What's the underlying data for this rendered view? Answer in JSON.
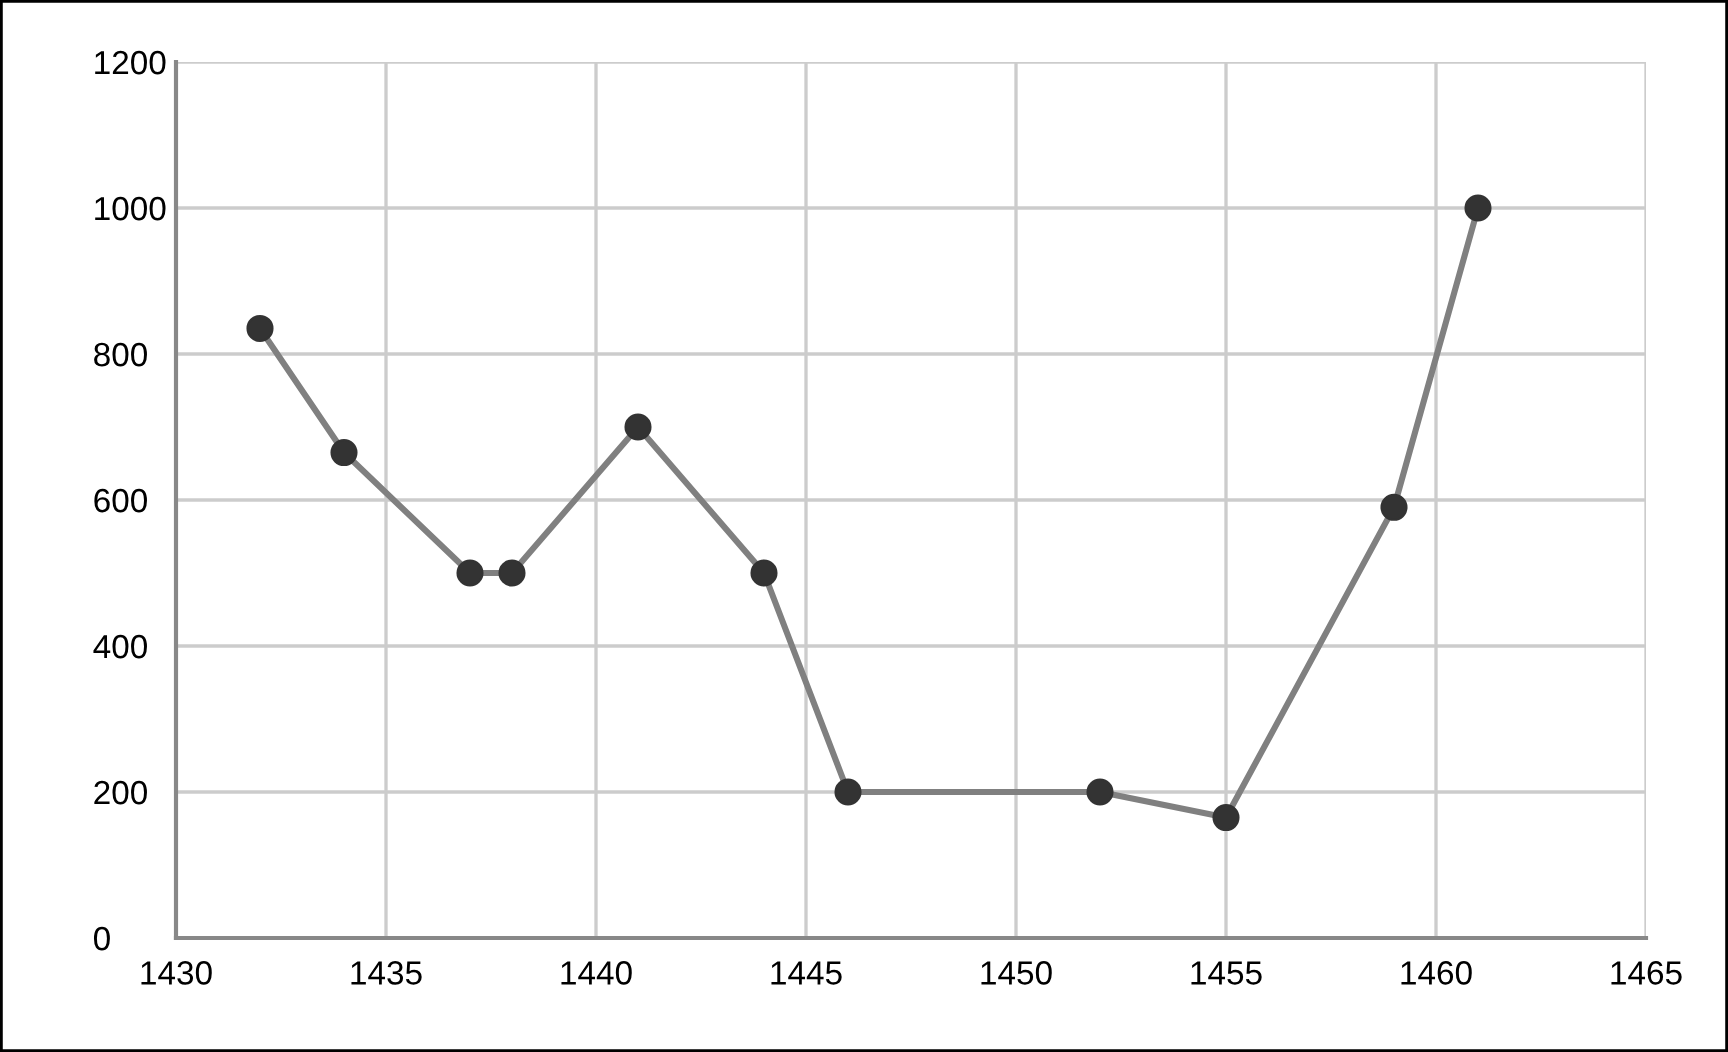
{
  "chart_data": {
    "type": "line",
    "x": [
      1432,
      1434,
      1437,
      1438,
      1441,
      1444,
      1446,
      1452,
      1455,
      1459,
      1461
    ],
    "series": [
      {
        "color": "#808080",
        "values": [
          835,
          665,
          500,
          500,
          700,
          500,
          200,
          200,
          165,
          590,
          1000
        ]
      }
    ],
    "xlim": [
      1430,
      1465
    ],
    "xticks": [
      1430,
      1435,
      1440,
      1445,
      1450,
      1455,
      1460,
      1465
    ],
    "ylim": [
      0,
      1200
    ],
    "yticks": [
      0,
      200,
      400,
      600,
      800,
      1000,
      1200
    ],
    "grid": true,
    "marker": "circle",
    "line_style": "solid"
  }
}
